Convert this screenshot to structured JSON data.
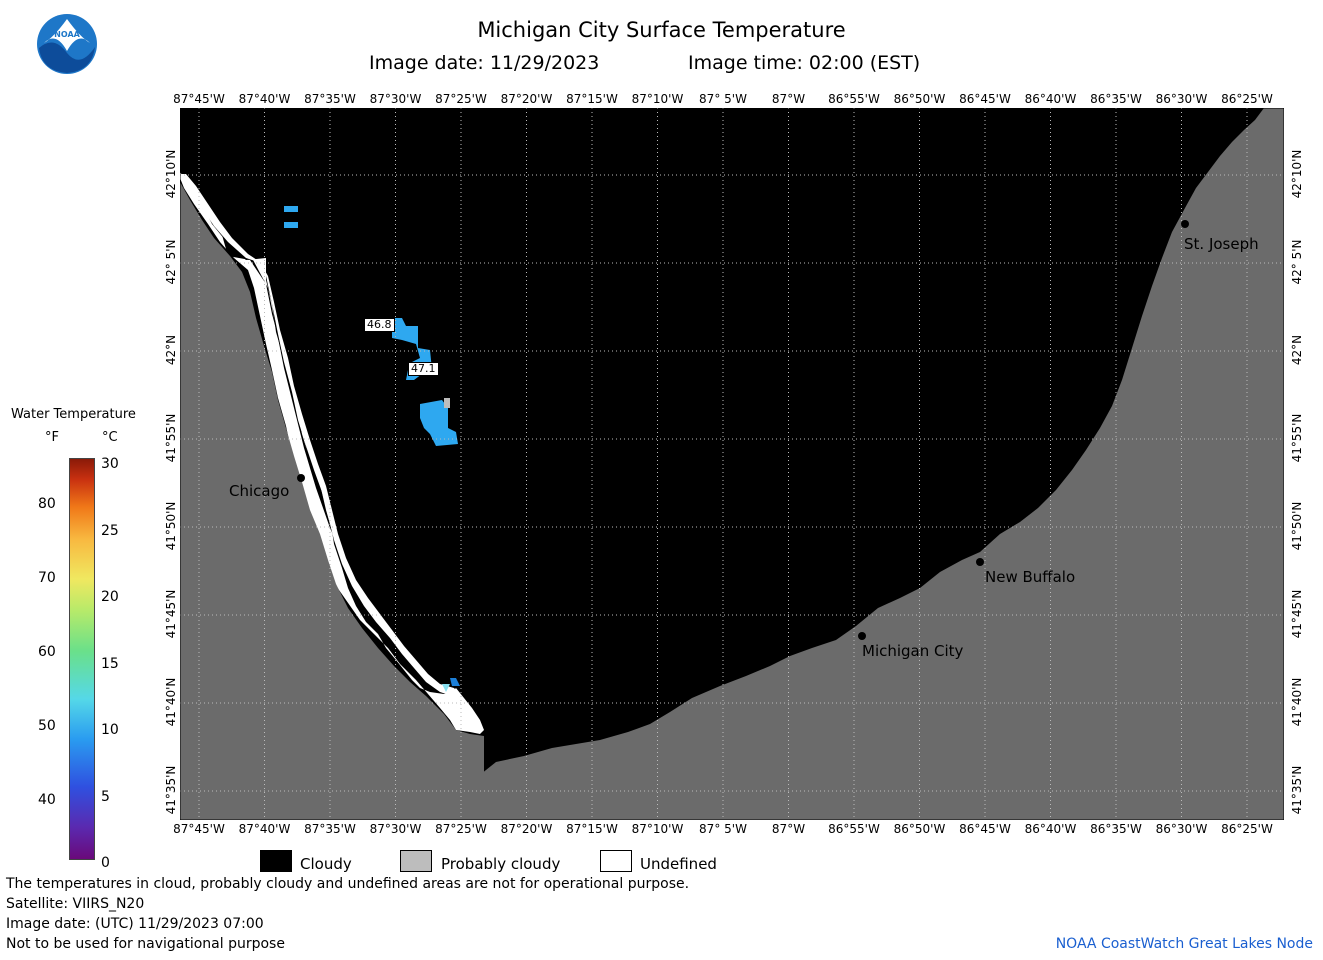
{
  "header": {
    "title": "Michigan City Surface Temperature",
    "date_text": "Image date: 11/29/2023",
    "time_text": "Image time: 02:00 (EST)"
  },
  "logo": {
    "text": "NOAA"
  },
  "lon_labels": [
    "87°45'W",
    "87°40'W",
    "87°35'W",
    "87°30'W",
    "87°25'W",
    "87°20'W",
    "87°15'W",
    "87°10'W",
    "87° 5'W",
    "87°W",
    "86°55'W",
    "86°50'W",
    "86°45'W",
    "86°40'W",
    "86°35'W",
    "86°30'W",
    "86°25'W"
  ],
  "lat_labels": [
    "42°10'N",
    "42° 5'N",
    "42°N",
    "41°55'N",
    "41°50'N",
    "41°45'N",
    "41°40'N",
    "41°35'N"
  ],
  "cities": {
    "chicago": "Chicago",
    "st_joseph": "St. Joseph",
    "new_buffalo": "New Buffalo",
    "michigan_city": "Michigan City"
  },
  "temp_labels": {
    "a": "46.8",
    "b": "47.1"
  },
  "scale": {
    "title": "Water Temperature",
    "unit_f": "°F",
    "unit_c": "°C",
    "f_ticks": [
      "80",
      "70",
      "60",
      "50",
      "40"
    ],
    "c_ticks": [
      "30",
      "25",
      "20",
      "15",
      "10",
      "5",
      "0"
    ]
  },
  "legend": {
    "cloudy": "Cloudy",
    "probably_cloudy": "Probably cloudy",
    "undefined": "Undefined"
  },
  "colors": {
    "cloud": "#000000",
    "land": "#6b6b6b",
    "undefined": "#ffffff",
    "probably_cloudy": "#bdbdbd",
    "water_warm": "#2ea8f0",
    "credit": "#1a5fd0"
  },
  "footer": {
    "note": "The temperatures in cloud, probably cloudy and undefined areas are not for operational purpose.",
    "satellite": "Satellite: VIIRS_N20",
    "utc": "Image date: (UTC) 11/29/2023  07:00",
    "nav": "Not to be used for navigational purpose",
    "credit": "NOAA CoastWatch Great Lakes Node"
  }
}
